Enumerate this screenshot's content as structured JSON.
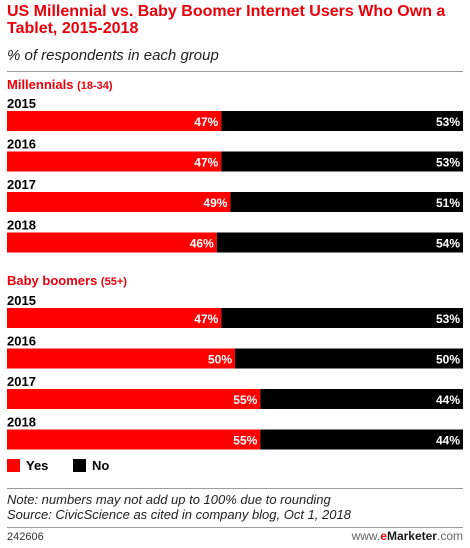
{
  "title": "US Millennial vs. Baby Boomer Internet Users Who Own a Tablet, 2015-2018",
  "subtitle": "% of respondents in each group",
  "colors": {
    "yes": "#ff0000",
    "no": "#000000",
    "group_label": "#e8000b"
  },
  "chart_data": {
    "type": "bar",
    "orientation": "horizontal",
    "stacked": true,
    "title": "US Millennial vs. Baby Boomer Internet Users Who Own a Tablet, 2015-2018",
    "subtitle": "% of respondents in each group",
    "unit": "%",
    "xlim": [
      0,
      100
    ],
    "legend": [
      {
        "name": "Yes",
        "color": "#ff0000"
      },
      {
        "name": "No",
        "color": "#000000"
      }
    ],
    "groups": [
      {
        "name": "Millennials",
        "range": "(18-34)",
        "categories": [
          "2015",
          "2016",
          "2017",
          "2018"
        ],
        "series": [
          {
            "name": "Yes",
            "values": [
              47,
              47,
              49,
              46
            ]
          },
          {
            "name": "No",
            "values": [
              53,
              53,
              51,
              54
            ]
          }
        ]
      },
      {
        "name": "Baby boomers",
        "range": "(55+)",
        "categories": [
          "2015",
          "2016",
          "2017",
          "2018"
        ],
        "series": [
          {
            "name": "Yes",
            "values": [
              47,
              50,
              55,
              55
            ]
          },
          {
            "name": "No",
            "values": [
              53,
              50,
              44,
              44
            ]
          }
        ]
      }
    ]
  },
  "footnotes": {
    "note": "Note: numbers may not add up to 100% due to rounding",
    "source": "Source: CivicScience as cited in company blog, Oct 1, 2018"
  },
  "chart_id": "242606",
  "brand": {
    "prefix": "www.",
    "e": "e",
    "name": "Marketer",
    "suffix": ".com"
  }
}
